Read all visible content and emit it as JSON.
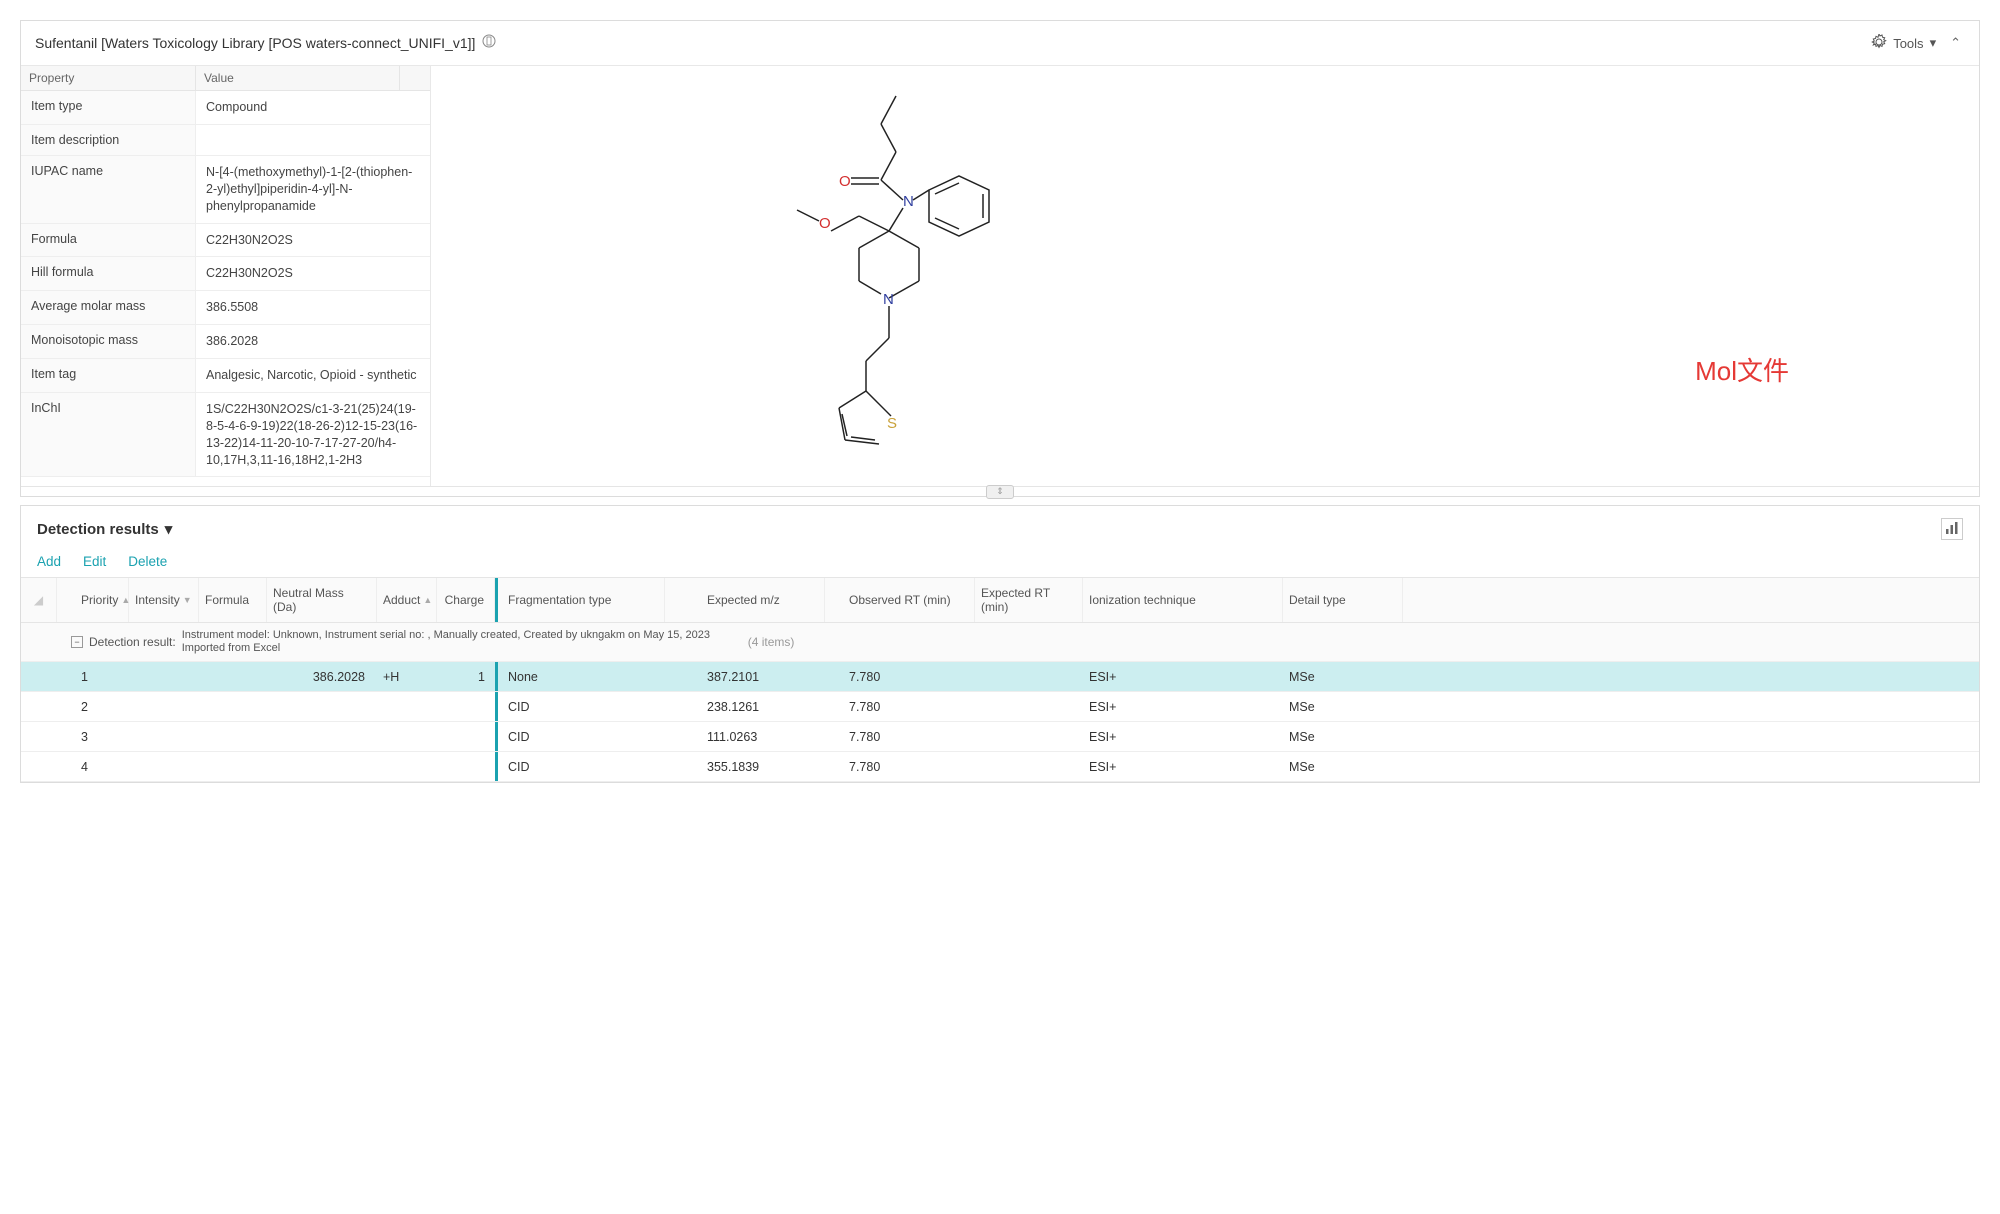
{
  "header": {
    "title": "Sufentanil  [Waters Toxicology Library [POS waters-connect_UNIFI_v1]]",
    "tools_label": "Tools"
  },
  "prop_header": {
    "property": "Property",
    "value": "Value"
  },
  "props": {
    "item_type_k": "Item type",
    "item_type_v": "Compound",
    "item_desc_k": "Item description",
    "item_desc_v": "",
    "iupac_k": "IUPAC name",
    "iupac_v": "N-[4-(methoxymethyl)-1-[2-(thiophen-2-yl)ethyl]piperidin-4-yl]-N-phenylpropanamide",
    "formula_k": "Formula",
    "formula_v": "C22H30N2O2S",
    "hill_k": "Hill formula",
    "hill_v": "C22H30N2O2S",
    "avg_mass_k": "Average molar mass",
    "avg_mass_v": "386.5508",
    "mono_mass_k": "Monoisotopic mass",
    "mono_mass_v": "386.2028",
    "tag_k": "Item tag",
    "tag_v": "Analgesic, Narcotic, Opioid - synthetic",
    "inchi_k": "InChI",
    "inchi_v": "1S/C22H30N2O2S/c1-3-21(25)24(19-8-5-4-6-9-19)22(18-26-2)12-15-23(16-13-22)14-11-20-10-7-17-27-20/h4-10,17H,3,11-16,18H2,1-2H3"
  },
  "mol_label": "Mol文件",
  "structure_atoms": {
    "O1": "O",
    "O2": "O",
    "N1": "N",
    "N2": "N",
    "S": "S"
  },
  "structure_colors": {
    "O": "#d32f2f",
    "N": "#303f9f",
    "S": "#c9a23a",
    "bond": "#222"
  },
  "results": {
    "title": "Detection results",
    "actions": {
      "add": "Add",
      "edit": "Edit",
      "delete": "Delete"
    },
    "columns": {
      "priority": "Priority",
      "intensity": "Intensity",
      "formula": "Formula",
      "neutral_mass": "Neutral Mass (Da)",
      "adduct": "Adduct",
      "charge": "Charge",
      "frag_type": "Fragmentation type",
      "expected_mz": "Expected m/z",
      "observed_rt": "Observed RT (min)",
      "expected_rt": "Expected RT (min)",
      "ionization": "Ionization technique",
      "detail": "Detail type"
    },
    "group": {
      "label": "Detection result:",
      "meta": "Instrument model: Unknown, Instrument serial no: , Manually created, Created by ukngakm on May 15, 2023  Imported from Excel",
      "count": "(4 items)"
    },
    "rows": [
      {
        "priority": "1",
        "neutral_mass": "386.2028",
        "adduct": "+H",
        "charge": "1",
        "frag": "None",
        "mz": "387.2101",
        "obsrt": "7.780",
        "ion": "ESI+",
        "det": "MSe",
        "selected": true
      },
      {
        "priority": "2",
        "neutral_mass": "",
        "adduct": "",
        "charge": "",
        "frag": "CID",
        "mz": "238.1261",
        "obsrt": "7.780",
        "ion": "ESI+",
        "det": "MSe",
        "selected": false
      },
      {
        "priority": "3",
        "neutral_mass": "",
        "adduct": "",
        "charge": "",
        "frag": "CID",
        "mz": "111.0263",
        "obsrt": "7.780",
        "ion": "ESI+",
        "det": "MSe",
        "selected": false
      },
      {
        "priority": "4",
        "neutral_mass": "",
        "adduct": "",
        "charge": "",
        "frag": "CID",
        "mz": "355.1839",
        "obsrt": "7.780",
        "ion": "ESI+",
        "det": "MSe",
        "selected": false
      }
    ]
  }
}
